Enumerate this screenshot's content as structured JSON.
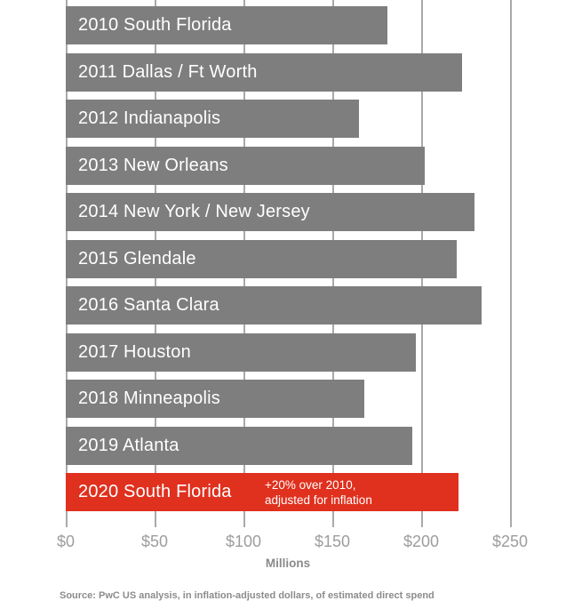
{
  "chart_data": {
    "type": "bar",
    "orientation": "horizontal",
    "title": "",
    "categories": [
      "2010 South Florida",
      "2011 Dallas / Ft Worth",
      "2012 Indianapolis",
      "2013 New Orleans",
      "2014 New York / New Jersey",
      "2015 Glendale",
      "2016 Santa Clara",
      "2017 Houston",
      "2018 Minneapolis",
      "2019 Atlanta",
      "2020 South Florida"
    ],
    "values": [
      181,
      223,
      165,
      202,
      230,
      220,
      234,
      197,
      168,
      195,
      221
    ],
    "unit": "USD millions",
    "xlabel": "Millions",
    "x_ticks": [
      "$0",
      "$50",
      "$100",
      "$150",
      "$200",
      "$250"
    ],
    "x_tick_values": [
      0,
      50,
      100,
      150,
      200,
      250
    ],
    "xlim": [
      0,
      250
    ],
    "grid": true,
    "bar_color": "#7e7e7e",
    "highlight_color": "#e0301e",
    "highlight_index": 10,
    "annotation": {
      "line1": "+20% over 2010,",
      "line2": "adjusted for inflation"
    }
  },
  "source": {
    "text": "Source: PwC US analysis, in inflation-adjusted dollars, of estimated direct spend"
  }
}
